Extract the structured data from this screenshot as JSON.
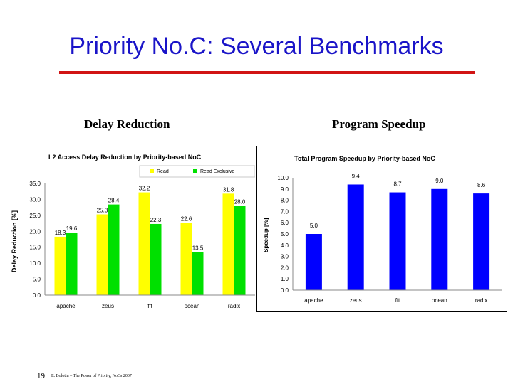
{
  "slide": {
    "title": "Priority No.C: Several Benchmarks",
    "left_label": "Delay Reduction",
    "right_label": "Program Speedup",
    "footer_number": "19",
    "footer_text": "E. Bolotin – The Power of Priority, NoCs 2007"
  },
  "colors": {
    "title": "#1a14c8",
    "rule": "#d11414",
    "read": "#ffff00",
    "read_exclusive": "#00e000",
    "speedup": "#0000ff"
  },
  "chart_data": [
    {
      "type": "bar",
      "title": "L2 Access Delay Reduction by Priority-based NoC",
      "categories": [
        "apache",
        "zeus",
        "fft",
        "ocean",
        "radix"
      ],
      "series": [
        {
          "name": "Read",
          "values": [
            18.3,
            25.3,
            32.2,
            22.6,
            31.8
          ]
        },
        {
          "name": "Read Exclusive",
          "values": [
            19.6,
            28.4,
            22.3,
            13.5,
            28.0
          ]
        }
      ],
      "ylabel": "Delay Reduction [%]",
      "xlabel": "",
      "ylim": [
        0,
        35
      ],
      "yticks": [
        "0.0",
        "5.0",
        "10.0",
        "15.0",
        "20.0",
        "25.0",
        "30.0",
        "35.0"
      ],
      "data_labels": [
        [
          "18.3",
          "25.3",
          "32.2",
          "22.6",
          "31.8"
        ],
        [
          "19.6",
          "28.4",
          "22.3",
          "13.5",
          "28.0"
        ]
      ],
      "legend_position": "top-right",
      "grid": false
    },
    {
      "type": "bar",
      "title": "Total Program Speedup by Priority-based NoC",
      "categories": [
        "apache",
        "zeus",
        "fft",
        "ocean",
        "radix"
      ],
      "series": [
        {
          "values": [
            5.0,
            9.4,
            8.7,
            9.0,
            8.6
          ]
        }
      ],
      "ylabel": "Speedup [%]",
      "xlabel": "",
      "ylim": [
        0,
        10
      ],
      "yticks": [
        "0.0",
        "1.0",
        "2.0",
        "3.0",
        "4.0",
        "5.0",
        "6.0",
        "7.0",
        "8.0",
        "9.0",
        "10.0"
      ],
      "data_labels": [
        "5.0",
        "9.4",
        "8.7",
        "9.0",
        "8.6"
      ],
      "grid": false
    }
  ]
}
